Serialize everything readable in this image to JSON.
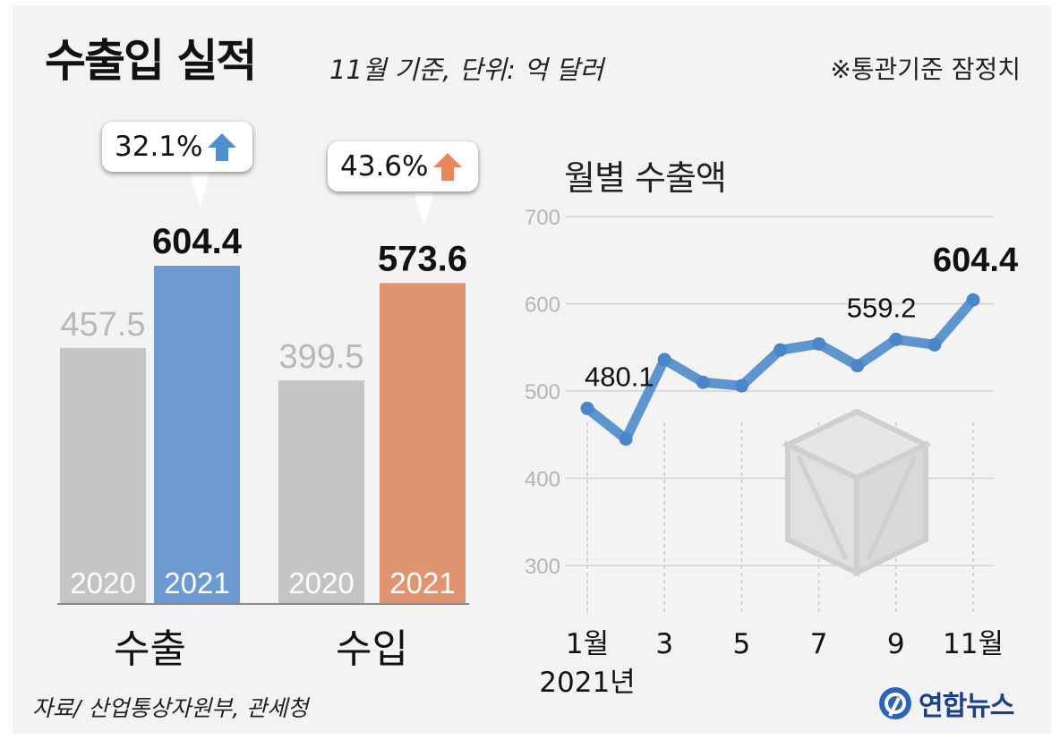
{
  "header": {
    "title": "수출입 실적",
    "subtitle": "11월 기준, 단위: 억 달러",
    "note": "※통관기준 잠정치"
  },
  "chart_data": [
    {
      "type": "bar",
      "categories": [
        "수출",
        "수입"
      ],
      "series": [
        {
          "name": "2020",
          "values": [
            457.5,
            399.5
          ]
        },
        {
          "name": "2021",
          "values": [
            604.4,
            573.6
          ]
        }
      ],
      "value_labels": {
        "2020": [
          "457.5",
          "399.5"
        ],
        "2021": [
          "604.4",
          "573.6"
        ]
      },
      "growth_labels": [
        "32.1%",
        "43.6%"
      ],
      "colors": {
        "2020": "#c4c4c4",
        "export_2021": "#6b9bd0",
        "import_2021": "#e19470",
        "up_export": "#4f8fcf",
        "up_import": "#e8875a"
      },
      "ylim": [
        0,
        650
      ]
    },
    {
      "type": "line",
      "title": "월별 수출액",
      "x": [
        1,
        2,
        3,
        4,
        5,
        6,
        7,
        8,
        9,
        10,
        11
      ],
      "values": [
        480.1,
        445,
        536,
        510,
        506,
        547,
        554,
        529,
        559.2,
        553,
        604.4
      ],
      "tick_labels": [
        "1월",
        "3",
        "5",
        "7",
        "9",
        "11월"
      ],
      "tick_positions": [
        1,
        3,
        5,
        7,
        9,
        11
      ],
      "x_sublabel": "2021년",
      "point_labels": {
        "1": "480.1",
        "9": "559.2",
        "11": "604.4"
      },
      "ylim": [
        250,
        700
      ],
      "yticks": [
        300,
        400,
        500,
        600,
        700
      ],
      "line_color": "#5f95cf",
      "grid": true
    }
  ],
  "footer": {
    "source": "자료/ 산업통상자원부, 관세청",
    "logo": "연합뉴스",
    "logo_icon": "yonhap-logo-icon"
  }
}
